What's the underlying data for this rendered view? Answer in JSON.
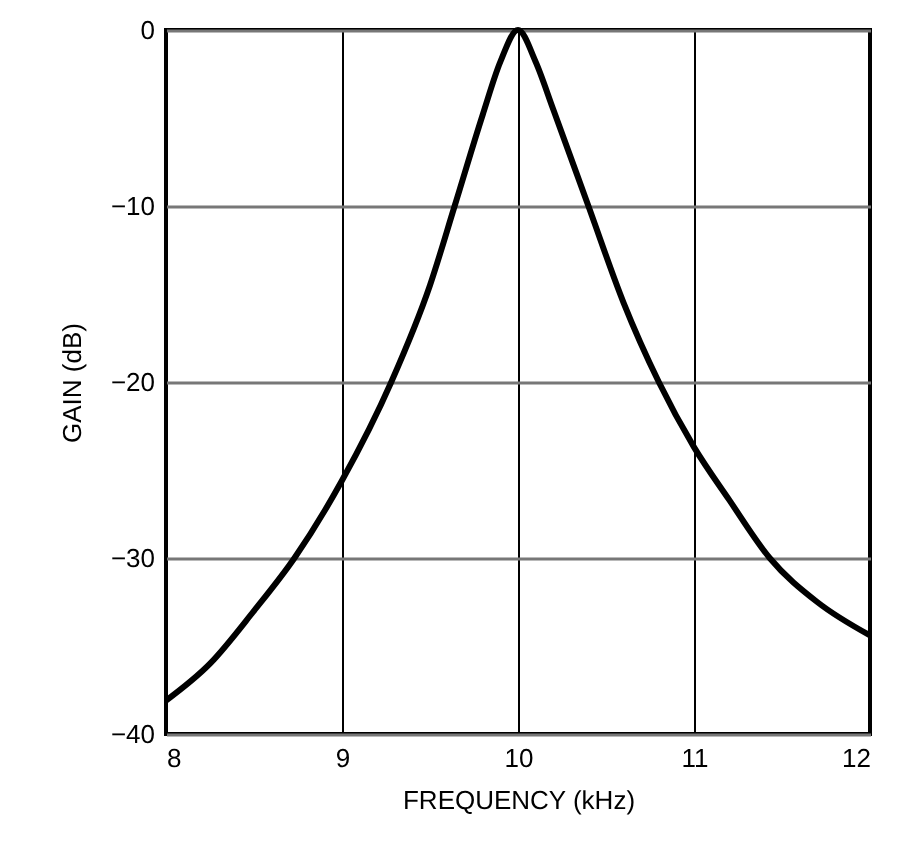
{
  "chart_data": {
    "type": "line",
    "xlabel": "FREQUENCY (kHz)",
    "ylabel": "GAIN (dB)",
    "x": [
      8,
      8.25,
      8.5,
      8.73,
      9,
      9.28,
      9.5,
      9.64,
      9.8,
      9.9,
      10,
      10.1,
      10.2,
      10.4,
      10.6,
      10.8,
      11,
      11.2,
      11.43,
      11.7,
      12
    ],
    "series": [
      {
        "color": "#000000",
        "values": [
          -38.1,
          -36,
          -33,
          -30,
          -25.6,
          -20,
          -14.5,
          -10,
          -4.8,
          -1.8,
          0,
          -1.8,
          -4.5,
          -10,
          -15.5,
          -20,
          -23.7,
          -26.7,
          -30,
          -32.5,
          -34.4
        ]
      }
    ],
    "xlim": [
      8,
      12
    ],
    "xticks": [
      8,
      9,
      10,
      11,
      12
    ],
    "ylim": [
      -40,
      0
    ],
    "yticks": [
      {
        "value": -40,
        "label": "−40"
      },
      {
        "value": -30,
        "label": "−30"
      },
      {
        "value": -20,
        "label": "−20"
      },
      {
        "value": -10,
        "label": "−10"
      },
      0
    ],
    "grid": true,
    "marker": "none",
    "line_style": "solid"
  }
}
